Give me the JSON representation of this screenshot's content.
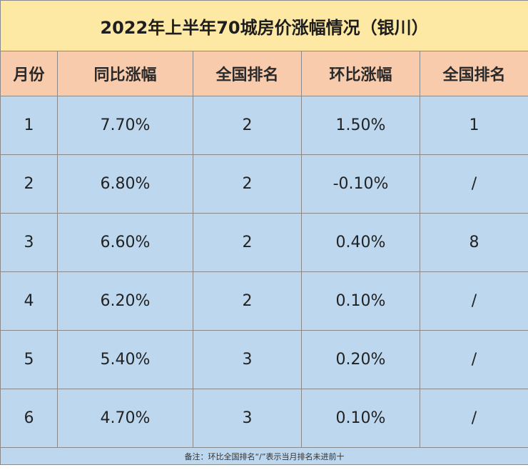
{
  "title": "2022年上半年70城房价涨幅情况（银川）",
  "headers": [
    "月份",
    "同比涨幅",
    "全国排名",
    "环比涨幅",
    "全国排名"
  ],
  "rows": [
    {
      "month": "1",
      "yoy": "7.70%",
      "yoy_rank": "2",
      "mom": "1.50%",
      "mom_rank": "1"
    },
    {
      "month": "2",
      "yoy": "6.80%",
      "yoy_rank": "2",
      "mom": "-0.10%",
      "mom_rank": "/"
    },
    {
      "month": "3",
      "yoy": "6.60%",
      "yoy_rank": "2",
      "mom": "0.40%",
      "mom_rank": "8"
    },
    {
      "month": "4",
      "yoy": "6.20%",
      "yoy_rank": "2",
      "mom": "0.10%",
      "mom_rank": "/"
    },
    {
      "month": "5",
      "yoy": "5.40%",
      "yoy_rank": "3",
      "mom": "0.20%",
      "mom_rank": "/"
    },
    {
      "month": "6",
      "yoy": "4.70%",
      "yoy_rank": "3",
      "mom": "0.10%",
      "mom_rank": "/"
    }
  ],
  "note": "备注：环比全国排名“/”表示当月排名未进前十",
  "colors": {
    "title_bg": "#fde9a3",
    "header_bg": "#f8cbad",
    "body_bg": "#bdd7ee",
    "border": "#8a8a8a"
  }
}
